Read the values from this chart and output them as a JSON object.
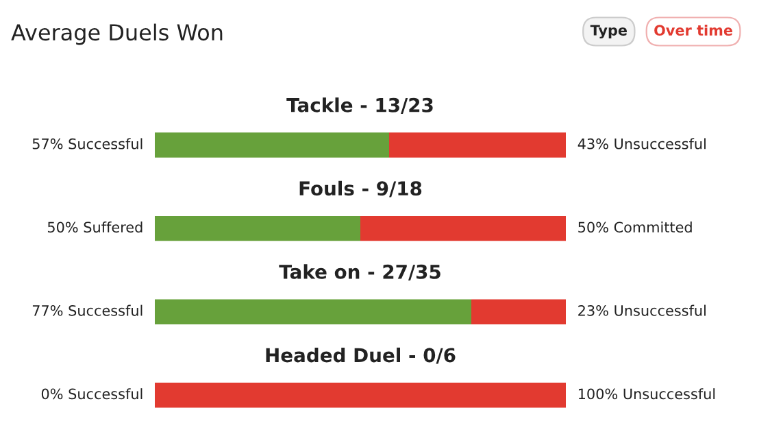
{
  "chart_data": {
    "type": "bar",
    "orientation": "horizontal",
    "stacked": true,
    "title": "Average Duels Won",
    "annotations": [
      "Type",
      "Over time"
    ],
    "categories": [
      "Tackle - 13/23",
      "Fouls - 9/18",
      "Take on - 27/35",
      "Headed Duel - 0/6"
    ],
    "series": [
      {
        "color": "#67a13b",
        "values": [
          57,
          50,
          77,
          0
        ],
        "value_labels": [
          "57% Successful",
          "50% Suffered",
          "77% Successful",
          "0% Successful"
        ]
      },
      {
        "color": "#e23a30",
        "values": [
          43,
          50,
          23,
          100
        ],
        "value_labels": [
          "43% Unsuccessful",
          "50% Committed",
          "23% Unsuccessful",
          "100% Unsuccessful"
        ]
      }
    ],
    "xlim": [
      0,
      100
    ],
    "legend": false
  }
}
